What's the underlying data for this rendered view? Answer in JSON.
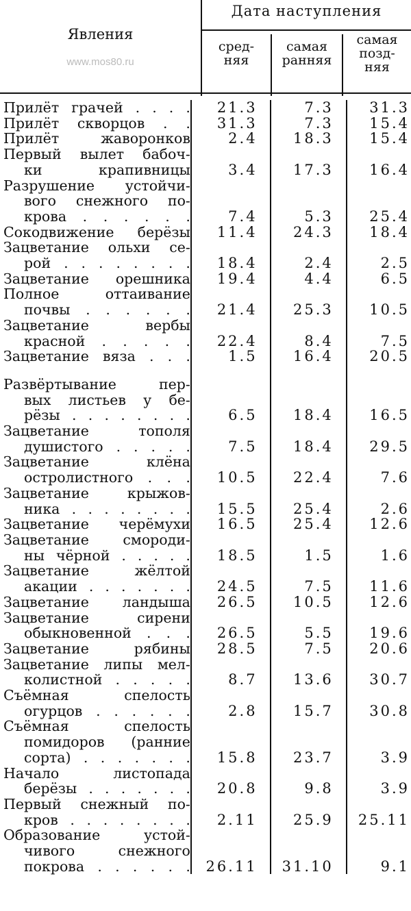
{
  "header": {
    "phenomena": "Явления",
    "watermark": "www.mos80.ru",
    "group": "Дата наступления",
    "columns": [
      [
        "сред-",
        "няя"
      ],
      [
        "самая",
        "ранняя"
      ],
      [
        "самая",
        "позд-",
        "няя"
      ]
    ]
  },
  "rows": [
    {
      "lines": [
        "Прилёт грачей . . . ."
      ],
      "avg": "21.3",
      "early": "7.3",
      "late": "31.3"
    },
    {
      "lines": [
        "Прилёт скворцов . ."
      ],
      "avg": "31.3",
      "early": "7.3",
      "late": "15.4"
    },
    {
      "lines": [
        "Прилёт жаворонков"
      ],
      "avg": "2.4",
      "early": "18.3",
      "late": "15.4"
    },
    {
      "lines": [
        "Первый вылет бабоч-",
        "ки крапивницы"
      ],
      "avg": "3.4",
      "early": "17.3",
      "late": "16.4"
    },
    {
      "lines": [
        "Разрушение устойчи-",
        "вого снежного по-",
        "крова . . . . . ."
      ],
      "avg": "7.4",
      "early": "5.3",
      "late": "25.4"
    },
    {
      "lines": [
        "Сокодвижение берёзы"
      ],
      "avg": "11.4",
      "early": "24.3",
      "late": "18.4"
    },
    {
      "lines": [
        "Зацветание ольхи се-",
        "рой . . . . . . . ."
      ],
      "avg": "18.4",
      "early": "2.4",
      "late": "2.5"
    },
    {
      "lines": [
        "Зацветание орешника"
      ],
      "avg": "19.4",
      "early": "4.4",
      "late": "6.5"
    },
    {
      "lines": [
        "Полное оттаивание",
        "почвы . . . . . ."
      ],
      "avg": "21.4",
      "early": "25.3",
      "late": "10.5"
    },
    {
      "lines": [
        "Зацветание вербы",
        "красной . . . . ."
      ],
      "avg": "22.4",
      "early": "8.4",
      "late": "7.5"
    },
    {
      "lines": [
        "Зацветание вяза . . ."
      ],
      "avg": "1.5",
      "early": "16.4",
      "late": "20.5"
    },
    {
      "lines": [
        "Развёртывание пер-",
        "вых листьев у бе-",
        "рёзы . . . . . . . ."
      ],
      "avg": "6.5",
      "early": "18.4",
      "late": "16.5"
    },
    {
      "lines": [
        "Зацветание тополя",
        "душистого . . . . ."
      ],
      "avg": "7.5",
      "early": "18.4",
      "late": "29.5"
    },
    {
      "lines": [
        "Зацветание клёна",
        "остролистного . . ."
      ],
      "avg": "10.5",
      "early": "22.4",
      "late": "7.6"
    },
    {
      "lines": [
        "Зацветание крыжов-",
        "ника . . . . . . . ."
      ],
      "avg": "15.5",
      "early": "25.4",
      "late": "2.6"
    },
    {
      "lines": [
        "Зацветание черёмухи"
      ],
      "avg": "16.5",
      "early": "25.4",
      "late": "12.6"
    },
    {
      "lines": [
        "Зацветание смороди-",
        "ны чёрной . . . . ."
      ],
      "avg": "18.5",
      "early": "1.5",
      "late": "1.6"
    },
    {
      "lines": [
        "Зацветание жёлтой",
        "акации . . . . . . ."
      ],
      "avg": "24.5",
      "early": "7.5",
      "late": "11.6"
    },
    {
      "lines": [
        "Зацветание ландыша"
      ],
      "avg": "26.5",
      "early": "10.5",
      "late": "12.6"
    },
    {
      "lines": [
        "Зацветание сирени",
        "обыкновенной . . ."
      ],
      "avg": "26.5",
      "early": "5.5",
      "late": "19.6"
    },
    {
      "lines": [
        "Зацветание рябины"
      ],
      "avg": "28.5",
      "early": "7.5",
      "late": "20.6"
    },
    {
      "lines": [
        "Зацветание липы мел-",
        "колистной . . . . ."
      ],
      "avg": "8.7",
      "early": "13.6",
      "late": "30.7"
    },
    {
      "lines": [
        "Съёмная спелость",
        "огурцов . . . . . ."
      ],
      "avg": "2.8",
      "early": "15.7",
      "late": "30.8"
    },
    {
      "lines": [
        "Съёмная спелость",
        "помидоров (ранние",
        "сорта) . . . . . . ."
      ],
      "avg": "15.8",
      "early": "23.7",
      "late": "3.9"
    },
    {
      "lines": [
        "Начало листопада",
        "берёзы . . . . . . ."
      ],
      "avg": "20.8",
      "early": "9.8",
      "late": "3.9"
    },
    {
      "lines": [
        "Первый снежный по-",
        "кров . . . . . . . ."
      ],
      "avg": "2.11",
      "early": "25.9",
      "late": "25.11"
    },
    {
      "lines": [
        "Образование устой-",
        "чивого снежного",
        "покрова . . . . . ."
      ],
      "avg": "26.11",
      "early": "31.10",
      "late": "9.1"
    }
  ]
}
